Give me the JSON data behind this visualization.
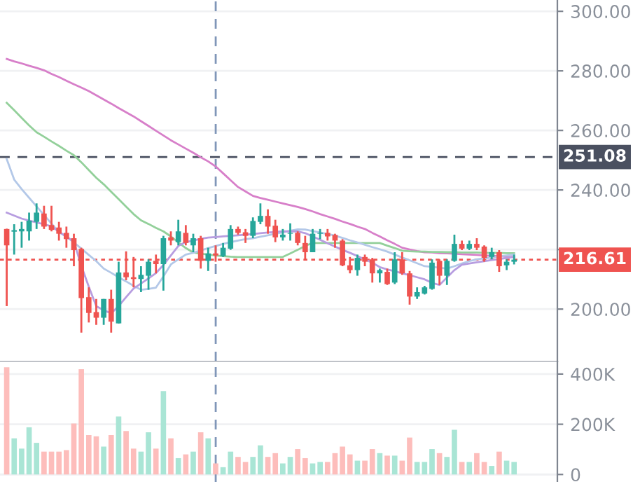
{
  "chart_data": [
    {
      "type": "candlestick",
      "categories": [
        null,
        null,
        null,
        null,
        null,
        null,
        null,
        null,
        null,
        null,
        null,
        null,
        null,
        null,
        null,
        null,
        null,
        null,
        null,
        null,
        null,
        null,
        null,
        null,
        null,
        null,
        null,
        null,
        null,
        null,
        null,
        null,
        null,
        null,
        null,
        null,
        null,
        null,
        null,
        null,
        null,
        null,
        null,
        null,
        null,
        null,
        null,
        null,
        null,
        null,
        null,
        null,
        null,
        null,
        null,
        null,
        null,
        null,
        null,
        null,
        null,
        null,
        null,
        null,
        null,
        null,
        null,
        null,
        null
      ],
      "ohlc": [
        [
          226.9,
          227,
          201,
          221.4
        ],
        [
          226,
          228.5,
          218.3,
          226.5
        ],
        [
          226.1,
          229.3,
          220.6,
          226.9
        ],
        [
          226.1,
          232.4,
          223,
          229.7
        ],
        [
          229.3,
          235.5,
          226.9,
          232.4
        ],
        [
          232.1,
          234.7,
          226.9,
          227.7
        ],
        [
          228.2,
          234.7,
          226.1,
          226.6
        ],
        [
          227.4,
          229.3,
          223,
          225.3
        ],
        [
          225.6,
          227.7,
          220.6,
          223.5
        ],
        [
          223.8,
          225.3,
          214.4,
          219.8
        ],
        [
          220.2,
          220.6,
          192.1,
          203.7
        ],
        [
          204,
          207.3,
          195.5,
          198.7
        ],
        [
          199,
          203.4,
          194.7,
          197.1
        ],
        [
          197.1,
          203.4,
          194.7,
          203.4
        ],
        [
          203.4,
          206.5,
          192.1,
          195.8
        ],
        [
          195.2,
          215.9,
          195.2,
          212.3
        ],
        [
          212.3,
          219.4,
          209.7,
          210.7
        ],
        [
          210.7,
          217.5,
          207.3,
          210.1
        ],
        [
          210.1,
          214.4,
          205.7,
          211.5
        ],
        [
          211.2,
          216.7,
          206.5,
          215.9
        ],
        [
          216.2,
          218.3,
          212,
          215.1
        ],
        [
          215.1,
          224.6,
          206.2,
          223.8
        ],
        [
          224.1,
          226.1,
          221.4,
          223
        ],
        [
          222.5,
          230,
          221.4,
          226.1
        ],
        [
          225.6,
          228.2,
          221.4,
          222.2
        ],
        [
          221.4,
          225.3,
          219.1,
          223.8
        ],
        [
          223.8,
          224.6,
          213.6,
          216.2
        ],
        [
          216.2,
          220.6,
          212.8,
          218.7
        ],
        [
          218.7,
          221.4,
          215.9,
          218
        ],
        [
          217.8,
          222.2,
          217.5,
          220.6
        ],
        [
          220.3,
          228.2,
          219.9,
          226.9
        ],
        [
          226.9,
          227.7,
          225,
          225.6
        ],
        [
          225.8,
          226.9,
          222.2,
          224.6
        ],
        [
          224.6,
          230.8,
          223.8,
          229.6
        ],
        [
          229.3,
          235.5,
          228.5,
          231.3
        ],
        [
          231.3,
          233.5,
          225.3,
          227.7
        ],
        [
          228,
          230,
          222.5,
          224.1
        ],
        [
          224.1,
          226.9,
          223,
          225
        ],
        [
          225.3,
          228.8,
          223,
          225.6
        ],
        [
          225.6,
          226.1,
          221.4,
          222.2
        ],
        [
          222.2,
          224.6,
          216.7,
          219.1
        ],
        [
          219.1,
          226.9,
          219.1,
          225.3
        ],
        [
          225.3,
          226.9,
          223.5,
          225.6
        ],
        [
          225.6,
          226.9,
          223,
          224.4
        ],
        [
          224.9,
          225.3,
          220.6,
          223
        ],
        [
          223,
          223.5,
          214.4,
          214.7
        ],
        [
          214.7,
          217.5,
          212,
          213.1
        ],
        [
          213.1,
          218.3,
          211.2,
          217.2
        ],
        [
          217.5,
          218.3,
          214.4,
          215.9
        ],
        [
          216.7,
          217.2,
          208.9,
          212
        ],
        [
          212,
          213.6,
          208.9,
          213.1
        ],
        [
          212.5,
          213.6,
          208.1,
          208.4
        ],
        [
          208.9,
          219.1,
          208.4,
          216.7
        ],
        [
          216.7,
          219.1,
          211.5,
          212
        ],
        [
          212,
          212.8,
          201.5,
          204.2
        ],
        [
          204.2,
          207.3,
          203.4,
          205.7
        ],
        [
          205.2,
          207.8,
          204.9,
          207.3
        ],
        [
          206.8,
          216.7,
          206.5,
          215.6
        ],
        [
          216.2,
          216.7,
          208.1,
          211.2
        ],
        [
          211.2,
          216.7,
          208.1,
          216.2
        ],
        [
          216.2,
          225,
          215.9,
          221.9
        ],
        [
          221.9,
          223,
          219.8,
          220.3
        ],
        [
          220.3,
          223,
          219.8,
          221.9
        ],
        [
          221.9,
          223.8,
          219.8,
          220.6
        ],
        [
          221,
          221.4,
          215.9,
          217.2
        ],
        [
          217.5,
          220.6,
          216.7,
          219.1
        ],
        [
          219.1,
          219.8,
          212.5,
          214.4
        ],
        [
          214.7,
          216.7,
          213.1,
          215.9
        ],
        [
          215.9,
          218.3,
          215,
          216.6
        ]
      ],
      "series": [
        {
          "type": "line",
          "color": "#d77fc9",
          "values": [
            284,
            283.2,
            282.5,
            281.7,
            281.0,
            280.2,
            279.0,
            277.9,
            276.7,
            275.5,
            274.4,
            273.2,
            271.8,
            270.4,
            269.0,
            267.5,
            266.1,
            264.7,
            263.1,
            261.5,
            259.9,
            258.3,
            256.7,
            255.3,
            253.9,
            252.5,
            251.0,
            249.6,
            247.9,
            245.6,
            243.3,
            241.0,
            239.5,
            238.0,
            237.3,
            236.7,
            236.1,
            235.5,
            234.9,
            234.3,
            233.6,
            232.8,
            231.9,
            231.1,
            230.3,
            229.4,
            228.6,
            227.7,
            226.9,
            225.6,
            224.4,
            223.1,
            221.9,
            220.6,
            220.0,
            219.5,
            219.1,
            219.0,
            218.8,
            218.7,
            218.6,
            218.4,
            218.3,
            218.2,
            218.0,
            217.9,
            217.8,
            217.6,
            217.5
          ]
        },
        {
          "type": "line",
          "color": "#93d09a",
          "values": [
            269.3,
            266.8,
            264.2,
            261.7,
            259.4,
            257.9,
            256.3,
            254.8,
            253.2,
            251.7,
            249.3,
            246.7,
            244.1,
            241.9,
            239.4,
            236.9,
            234.4,
            231.9,
            229.8,
            228.6,
            227.3,
            226.1,
            224.4,
            222.4,
            220.5,
            219.0,
            218.6,
            218.3,
            218.0,
            217.8,
            217.6,
            217.5,
            217.5,
            217.5,
            217.5,
            217.5,
            217.5,
            217.5,
            218.7,
            219.9,
            221.2,
            222.2,
            222.2,
            222.2,
            222.2,
            222.2,
            222.2,
            222.2,
            222.2,
            222.2,
            222.2,
            221.3,
            220.5,
            219.6,
            219.4,
            219.3,
            219.3,
            219.2,
            219.2,
            219.1,
            219.1,
            219.0,
            219.0,
            219.0,
            218.9,
            218.9,
            218.9,
            218.8,
            218.8
          ]
        },
        {
          "type": "line",
          "color": "#b3c8e8",
          "values": [
            250.4,
            243.5,
            240.3,
            237.4,
            234.5,
            231.6,
            228.7,
            225.8,
            224.3,
            222.4,
            220.3,
            218.2,
            216.1,
            213.6,
            212.2,
            210.7,
            209.3,
            207.8,
            206.5,
            206.8,
            207.2,
            211.0,
            215.0,
            216.7,
            218.3,
            218.9,
            219.7,
            220.5,
            221.2,
            221.9,
            222.5,
            223.0,
            223.5,
            223.8,
            224.3,
            224.8,
            225.3,
            225.8,
            226.3,
            226.8,
            226.7,
            226.2,
            225.7,
            225.2,
            224.7,
            223.9,
            223.1,
            222.4,
            221.6,
            220.8,
            220.1,
            219.3,
            218.3,
            217.3,
            216.4,
            215.4,
            214.4,
            214.2,
            213.9,
            213.6,
            214.4,
            215.3,
            216.1,
            216.7,
            217.0,
            217.3,
            217.7,
            218.0,
            218.3
          ]
        },
        {
          "type": "line",
          "color": "#b79de0",
          "values": [
            232.4,
            231.4,
            230.4,
            229.7,
            229.1,
            228.5,
            227.8,
            226.0,
            224.3,
            222.7,
            214.5,
            207.5,
            201.0,
            199.6,
            198.6,
            201.0,
            204.0,
            206.9,
            208.6,
            210.3,
            212.1,
            214.8,
            218.0,
            221.2,
            222.5,
            223.0,
            223.6,
            224.0,
            224.2,
            224.4,
            224.6,
            224.8,
            225.0,
            225.2,
            225.5,
            225.7,
            225.9,
            226.1,
            226.1,
            226.1,
            225.5,
            224.4,
            223.3,
            222.1,
            221.0,
            219.9,
            218.9,
            217.8,
            216.7,
            215.6,
            214.1,
            213.3,
            212.7,
            212.0,
            211.4,
            210.7,
            210.0,
            208.8,
            208.1,
            210.6,
            213.1,
            214.9,
            215.3,
            215.7,
            216.1,
            216.5,
            216.8,
            217.2,
            217.5
          ]
        }
      ],
      "ylim": [
        182.4,
        303.8
      ],
      "yticks": [
        {
          "value": 200,
          "label": "200.00"
        },
        {
          "value": 220,
          "label": null
        },
        {
          "value": 240,
          "label": "240.00"
        },
        {
          "value": 260,
          "label": "260.00"
        },
        {
          "value": 280,
          "label": "280.00"
        },
        {
          "value": 300,
          "label": "300.00"
        }
      ],
      "ref_lines": [
        {
          "axis": "y",
          "value": 216.61,
          "label": "216.61",
          "color": "#ef5350",
          "line_style": "dotted"
        },
        {
          "axis": "y",
          "value": 251.08,
          "label": "251.08",
          "color": "#4a5060",
          "line_style": "dashed"
        }
      ],
      "grid": "y"
    },
    {
      "type": "bar",
      "categories": [
        null,
        null,
        null,
        null,
        null,
        null,
        null,
        null,
        null,
        null,
        null,
        null,
        null,
        null,
        null,
        null,
        null,
        null,
        null,
        null,
        null,
        null,
        null,
        null,
        null,
        null,
        null,
        null,
        null,
        null,
        null,
        null,
        null,
        null,
        null,
        null,
        null,
        null,
        null,
        null,
        null,
        null,
        null,
        null,
        null,
        null,
        null,
        null,
        null,
        null,
        null,
        null,
        null,
        null,
        null,
        null,
        null,
        null,
        null,
        null,
        null,
        null,
        null,
        null,
        null,
        null,
        null,
        null,
        null
      ],
      "values": [
        427000,
        144000,
        103000,
        188000,
        126000,
        91000,
        91000,
        91000,
        97000,
        203000,
        419000,
        157000,
        152000,
        111000,
        157000,
        231000,
        173000,
        103000,
        91000,
        168000,
        103000,
        332000,
        144000,
        65000,
        80000,
        91000,
        168000,
        144000,
        44000,
        29000,
        91000,
        70000,
        50000,
        70000,
        116000,
        70000,
        85000,
        44000,
        70000,
        101000,
        65000,
        44000,
        50000,
        50000,
        85000,
        111000,
        80000,
        55000,
        55000,
        101000,
        85000,
        75000,
        75000,
        55000,
        147000,
        50000,
        50000,
        101000,
        85000,
        70000,
        178000,
        50000,
        50000,
        85000,
        50000,
        34000,
        91000,
        55000,
        50000
      ],
      "colors": [
        "#fdbdbb",
        "#a9e5d5",
        "#a9e5d5",
        "#a9e5d5",
        "#a9e5d5",
        "#fdbdbb",
        "#fdbdbb",
        "#fdbdbb",
        "#fdbdbb",
        "#fdbdbb",
        "#fdbdbb",
        "#fdbdbb",
        "#fdbdbb",
        "#a9e5d5",
        "#fdbdbb",
        "#a9e5d5",
        "#fdbdbb",
        "#fdbdbb",
        "#a9e5d5",
        "#a9e5d5",
        "#fdbdbb",
        "#a9e5d5",
        "#fdbdbb",
        "#a9e5d5",
        "#fdbdbb",
        "#a9e5d5",
        "#fdbdbb",
        "#a9e5d5",
        "#fdbdbb",
        "#a9e5d5",
        "#a9e5d5",
        "#fdbdbb",
        "#fdbdbb",
        "#a9e5d5",
        "#a9e5d5",
        "#fdbdbb",
        "#fdbdbb",
        "#a9e5d5",
        "#a9e5d5",
        "#fdbdbb",
        "#fdbdbb",
        "#a9e5d5",
        "#a9e5d5",
        "#fdbdbb",
        "#fdbdbb",
        "#fdbdbb",
        "#fdbdbb",
        "#a9e5d5",
        "#fdbdbb",
        "#fdbdbb",
        "#a9e5d5",
        "#fdbdbb",
        "#a9e5d5",
        "#fdbdbb",
        "#fdbdbb",
        "#a9e5d5",
        "#a9e5d5",
        "#a9e5d5",
        "#fdbdbb",
        "#a9e5d5",
        "#a9e5d5",
        "#fdbdbb",
        "#a9e5d5",
        "#fdbdbb",
        "#fdbdbb",
        "#a9e5d5",
        "#fdbdbb",
        "#a9e5d5",
        "#a9e5d5"
      ],
      "ylim": [
        -30000,
        450000
      ],
      "yticks": [
        {
          "value": 0,
          "label": "0"
        },
        {
          "value": 200000,
          "label": "200K"
        },
        {
          "value": 400000,
          "label": "400K"
        }
      ],
      "grid": "y"
    }
  ]
}
